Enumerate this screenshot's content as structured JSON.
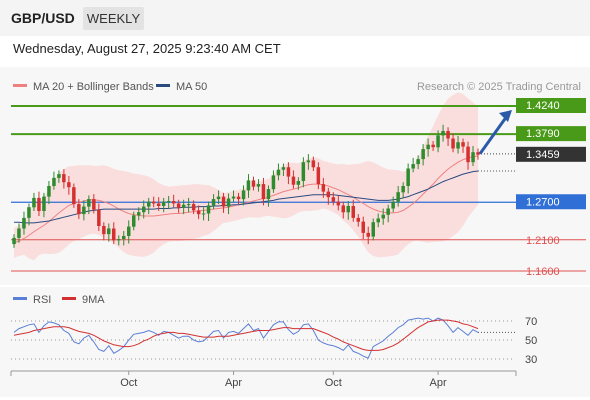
{
  "header": {
    "symbol": "GBP/USD",
    "timeframe": "WEEKLY"
  },
  "datetime": "Wednesday, August 27, 2025 9:23:40 AM CET",
  "legend": {
    "ma_bb": "MA 20 + Bollinger Bands",
    "ma50": "MA 50",
    "credit": "Research © 2025 Trading Central",
    "rsi": "RSI",
    "rsi_ma": "9MA"
  },
  "colors": {
    "resistance": "#4a9a1a",
    "support_strong": "#2f6fd6",
    "support": "#e05050",
    "current": "#333333",
    "bollinger_fill": "#fbd6d6",
    "ma20": "#f08080",
    "ma50": "#2a4a80",
    "bull": "#2e8b2e",
    "bear": "#d43030",
    "rsi": "#5a7fd6",
    "rsi_ma": "#d43030",
    "arrow": "#2a5aa8"
  },
  "chart_data": {
    "type": "candlestick",
    "title": "GBP/USD",
    "timeframe": "WEEKLY",
    "x_tick_labels": [
      "Oct",
      "Apr",
      "Oct",
      "Apr"
    ],
    "price_range": [
      1.14,
      1.44
    ],
    "levels": [
      {
        "label": "1.4240",
        "value": 1.424,
        "kind": "resistance"
      },
      {
        "label": "1.3790",
        "value": 1.379,
        "kind": "resistance"
      },
      {
        "label": "1.3459",
        "value": 1.3459,
        "kind": "current"
      },
      {
        "label": "1.2700",
        "value": 1.27,
        "kind": "pivot"
      },
      {
        "label": "1.2100",
        "value": 1.21,
        "kind": "support"
      },
      {
        "label": "1.1600",
        "value": 1.16,
        "kind": "support"
      }
    ],
    "close_series": [
      1.213,
      1.228,
      1.245,
      1.262,
      1.277,
      1.256,
      1.279,
      1.296,
      1.309,
      1.315,
      1.302,
      1.294,
      1.267,
      1.251,
      1.263,
      1.275,
      1.258,
      1.232,
      1.219,
      1.228,
      1.209,
      1.211,
      1.216,
      1.231,
      1.249,
      1.254,
      1.263,
      1.271,
      1.268,
      1.264,
      1.271,
      1.272,
      1.268,
      1.261,
      1.266,
      1.267,
      1.257,
      1.251,
      1.252,
      1.265,
      1.275,
      1.279,
      1.263,
      1.276,
      1.279,
      1.275,
      1.289,
      1.305,
      1.295,
      1.299,
      1.275,
      1.291,
      1.313,
      1.322,
      1.326,
      1.311,
      1.298,
      1.304,
      1.334,
      1.337,
      1.326,
      1.299,
      1.287,
      1.278,
      1.271,
      1.265,
      1.254,
      1.264,
      1.245,
      1.239,
      1.221,
      1.215,
      1.238,
      1.244,
      1.25,
      1.26,
      1.271,
      1.286,
      1.296,
      1.324,
      1.331,
      1.339,
      1.355,
      1.362,
      1.358,
      1.377,
      1.384,
      1.372,
      1.356,
      1.366,
      1.359,
      1.334,
      1.35,
      1.346
    ],
    "indicators": {
      "ma20_series": [
        1.205,
        1.208,
        1.212,
        1.217,
        1.223,
        1.228,
        1.233,
        1.239,
        1.246,
        1.253,
        1.259,
        1.265,
        1.268,
        1.27,
        1.272,
        1.274,
        1.274,
        1.273,
        1.271,
        1.268,
        1.264,
        1.259,
        1.255,
        1.252,
        1.25,
        1.249,
        1.248,
        1.248,
        1.248,
        1.249,
        1.25,
        1.251,
        1.252,
        1.252,
        1.253,
        1.254,
        1.255,
        1.256,
        1.257,
        1.258,
        1.259,
        1.26,
        1.261,
        1.262,
        1.264,
        1.266,
        1.268,
        1.27,
        1.272,
        1.274,
        1.276,
        1.278,
        1.281,
        1.284,
        1.287,
        1.289,
        1.291,
        1.293,
        1.296,
        1.298,
        1.299,
        1.299,
        1.298,
        1.296,
        1.293,
        1.29,
        1.286,
        1.282,
        1.278,
        1.273,
        1.268,
        1.263,
        1.259,
        1.256,
        1.254,
        1.253,
        1.253,
        1.254,
        1.257,
        1.262,
        1.268,
        1.275,
        1.283,
        1.291,
        1.299,
        1.308,
        1.316,
        1.323,
        1.329,
        1.334,
        1.338,
        1.341,
        1.343,
        1.344
      ],
      "ma50_series": [
        1.238,
        1.238,
        1.237,
        1.237,
        1.237,
        1.238,
        1.239,
        1.24,
        1.242,
        1.244,
        1.246,
        1.248,
        1.25,
        1.252,
        1.254,
        1.256,
        1.257,
        1.258,
        1.259,
        1.259,
        1.259,
        1.259,
        1.259,
        1.259,
        1.259,
        1.259,
        1.259,
        1.259,
        1.259,
        1.26,
        1.26,
        1.26,
        1.261,
        1.261,
        1.262,
        1.262,
        1.262,
        1.263,
        1.263,
        1.263,
        1.264,
        1.264,
        1.265,
        1.265,
        1.266,
        1.266,
        1.267,
        1.268,
        1.269,
        1.27,
        1.271,
        1.272,
        1.273,
        1.275,
        1.276,
        1.277,
        1.278,
        1.279,
        1.28,
        1.281,
        1.282,
        1.282,
        1.282,
        1.282,
        1.282,
        1.281,
        1.28,
        1.279,
        1.278,
        1.277,
        1.276,
        1.275,
        1.274,
        1.273,
        1.273,
        1.273,
        1.274,
        1.275,
        1.277,
        1.279,
        1.282,
        1.285,
        1.288,
        1.291,
        1.295,
        1.299,
        1.303,
        1.306,
        1.309,
        1.312,
        1.315,
        1.317,
        1.319,
        1.32
      ],
      "rsi_range": [
        20,
        80
      ],
      "rsi_levels": [
        70,
        50,
        30
      ],
      "rsi_series": [
        58,
        62,
        64,
        66,
        67,
        58,
        65,
        69,
        68,
        66,
        60,
        57,
        48,
        46,
        52,
        55,
        48,
        40,
        38,
        44,
        36,
        39,
        43,
        50,
        56,
        57,
        58,
        60,
        58,
        55,
        59,
        58,
        55,
        52,
        54,
        54,
        50,
        48,
        49,
        54,
        59,
        60,
        52,
        58,
        59,
        57,
        62,
        67,
        60,
        62,
        52,
        59,
        66,
        69,
        69,
        61,
        56,
        59,
        66,
        67,
        60,
        50,
        47,
        45,
        44,
        42,
        39,
        45,
        38,
        36,
        33,
        31,
        43,
        46,
        49,
        54,
        58,
        63,
        66,
        71,
        72,
        73,
        72,
        73,
        70,
        73,
        71,
        65,
        58,
        63,
        59,
        55,
        61,
        58
      ],
      "rsi_ma_series": [
        55,
        56,
        57,
        58,
        60,
        61,
        62,
        63,
        64,
        64,
        64,
        63,
        61,
        59,
        58,
        57,
        55,
        52,
        49,
        47,
        45,
        44,
        43,
        43,
        44,
        46,
        49,
        51,
        54,
        56,
        57,
        58,
        58,
        57,
        57,
        56,
        55,
        54,
        53,
        53,
        53,
        54,
        54,
        54,
        55,
        56,
        57,
        58,
        59,
        60,
        60,
        60,
        61,
        62,
        63,
        63,
        62,
        62,
        62,
        62,
        62,
        60,
        58,
        56,
        53,
        51,
        48,
        46,
        44,
        42,
        40,
        39,
        39,
        39,
        40,
        42,
        44,
        47,
        51,
        55,
        59,
        63,
        66,
        69,
        70,
        71,
        71,
        71,
        70,
        69,
        67,
        66,
        64,
        62
      ]
    }
  }
}
